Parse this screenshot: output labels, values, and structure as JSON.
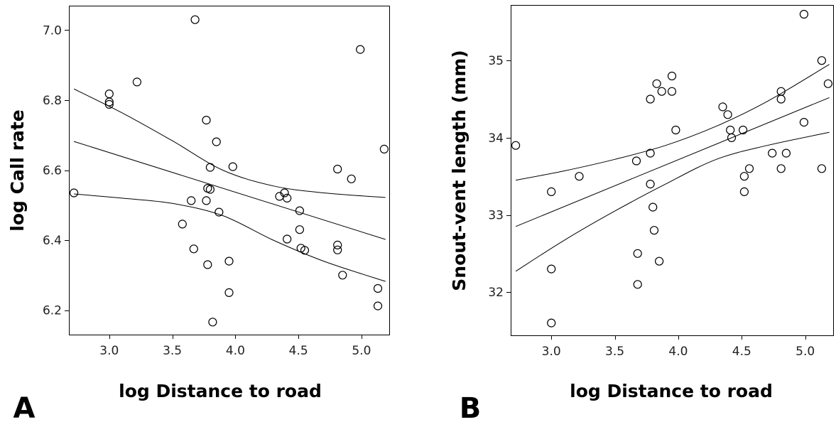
{
  "chart_data": [
    {
      "type": "scatter",
      "panel_label": "A",
      "xlabel": "log Distance to road",
      "ylabel": "log Call rate",
      "xlim": [
        2.68,
        5.22
      ],
      "ylim": [
        6.13,
        7.07
      ],
      "xticks": [
        3.0,
        3.5,
        4.0,
        4.5,
        5.0
      ],
      "yticks": [
        6.2,
        6.4,
        6.6,
        6.8,
        7.0
      ],
      "xtick_labels": [
        "3.0",
        "3.5",
        "4.0",
        "4.5",
        "5.0"
      ],
      "ytick_labels": [
        "6.2",
        "6.4",
        "6.6",
        "6.8",
        "7.0"
      ],
      "grid": false,
      "points": [
        [
          2.72,
          6.535
        ],
        [
          3.0,
          6.818
        ],
        [
          3.0,
          6.795
        ],
        [
          3.0,
          6.788
        ],
        [
          3.22,
          6.852
        ],
        [
          3.58,
          6.446
        ],
        [
          3.65,
          6.513
        ],
        [
          3.67,
          6.375
        ],
        [
          3.68,
          7.03
        ],
        [
          3.77,
          6.743
        ],
        [
          3.77,
          6.513
        ],
        [
          3.78,
          6.548
        ],
        [
          3.78,
          6.33
        ],
        [
          3.8,
          6.608
        ],
        [
          3.8,
          6.545
        ],
        [
          3.82,
          6.166
        ],
        [
          3.85,
          6.681
        ],
        [
          3.87,
          6.48
        ],
        [
          3.95,
          6.34
        ],
        [
          3.95,
          6.25
        ],
        [
          3.98,
          6.61
        ],
        [
          4.35,
          6.525
        ],
        [
          4.39,
          6.535
        ],
        [
          4.41,
          6.52
        ],
        [
          4.41,
          6.403
        ],
        [
          4.51,
          6.484
        ],
        [
          4.51,
          6.43
        ],
        [
          4.52,
          6.377
        ],
        [
          4.55,
          6.371
        ],
        [
          4.81,
          6.603
        ],
        [
          4.81,
          6.386
        ],
        [
          4.81,
          6.372
        ],
        [
          4.85,
          6.3
        ],
        [
          4.92,
          6.575
        ],
        [
          4.99,
          6.945
        ],
        [
          5.13,
          6.262
        ],
        [
          5.13,
          6.212
        ],
        [
          5.18,
          6.66
        ]
      ],
      "fit": {
        "x": [
          2.72,
          5.19
        ],
        "y": [
          6.682,
          6.402
        ]
      },
      "ci_upper": {
        "x": [
          2.72,
          3.1,
          3.5,
          3.9,
          4.3,
          4.7,
          5.19
        ],
        "y": [
          6.832,
          6.764,
          6.684,
          6.6,
          6.555,
          6.535,
          6.522
        ]
      },
      "ci_lower": {
        "x": [
          2.72,
          3.1,
          3.5,
          3.9,
          4.3,
          4.7,
          5.19
        ],
        "y": [
          6.532,
          6.52,
          6.505,
          6.47,
          6.4,
          6.34,
          6.282
        ]
      }
    },
    {
      "type": "scatter",
      "panel_label": "B",
      "xlabel": "log Distance to road",
      "ylabel": "Snout-vent length (mm)",
      "xlim": [
        2.68,
        5.22
      ],
      "ylim": [
        31.44,
        35.72
      ],
      "xticks": [
        3.0,
        3.5,
        4.0,
        4.5,
        5.0
      ],
      "yticks": [
        32,
        33,
        34,
        35
      ],
      "xtick_labels": [
        "3.0",
        "3.5",
        "4.0",
        "4.5",
        "5.0"
      ],
      "ytick_labels": [
        "32",
        "33",
        "34",
        "35"
      ],
      "grid": false,
      "points": [
        [
          2.72,
          33.9
        ],
        [
          3.0,
          33.3
        ],
        [
          3.0,
          32.3
        ],
        [
          3.0,
          31.6
        ],
        [
          3.22,
          33.5
        ],
        [
          3.67,
          33.7
        ],
        [
          3.68,
          32.5
        ],
        [
          3.68,
          32.1
        ],
        [
          3.78,
          34.5
        ],
        [
          3.78,
          33.8
        ],
        [
          3.78,
          33.4
        ],
        [
          3.8,
          33.1
        ],
        [
          3.81,
          32.8
        ],
        [
          3.83,
          34.7
        ],
        [
          3.85,
          32.4
        ],
        [
          3.87,
          34.6
        ],
        [
          3.95,
          34.8
        ],
        [
          3.95,
          34.6
        ],
        [
          3.98,
          34.1
        ],
        [
          4.35,
          34.4
        ],
        [
          4.39,
          34.3
        ],
        [
          4.41,
          34.1
        ],
        [
          4.42,
          34.0
        ],
        [
          4.51,
          34.1
        ],
        [
          4.52,
          33.5
        ],
        [
          4.52,
          33.3
        ],
        [
          4.56,
          33.6
        ],
        [
          4.74,
          33.8
        ],
        [
          4.81,
          34.6
        ],
        [
          4.81,
          34.5
        ],
        [
          4.81,
          33.6
        ],
        [
          4.85,
          33.8
        ],
        [
          4.99,
          35.6
        ],
        [
          4.99,
          34.2
        ],
        [
          5.13,
          35.0
        ],
        [
          5.13,
          33.6
        ],
        [
          5.18,
          34.7
        ]
      ],
      "fit": {
        "x": [
          2.72,
          5.19
        ],
        "y": [
          32.85,
          34.52
        ]
      },
      "ci_upper": {
        "x": [
          2.72,
          3.1,
          3.5,
          3.9,
          4.3,
          4.7,
          5.19
        ],
        "y": [
          33.45,
          33.57,
          33.72,
          33.9,
          34.15,
          34.47,
          34.95
        ]
      },
      "ci_lower": {
        "x": [
          2.72,
          3.1,
          3.5,
          3.9,
          4.3,
          4.7,
          5.19
        ],
        "y": [
          32.27,
          32.67,
          33.05,
          33.4,
          33.72,
          33.9,
          34.07
        ]
      }
    }
  ]
}
